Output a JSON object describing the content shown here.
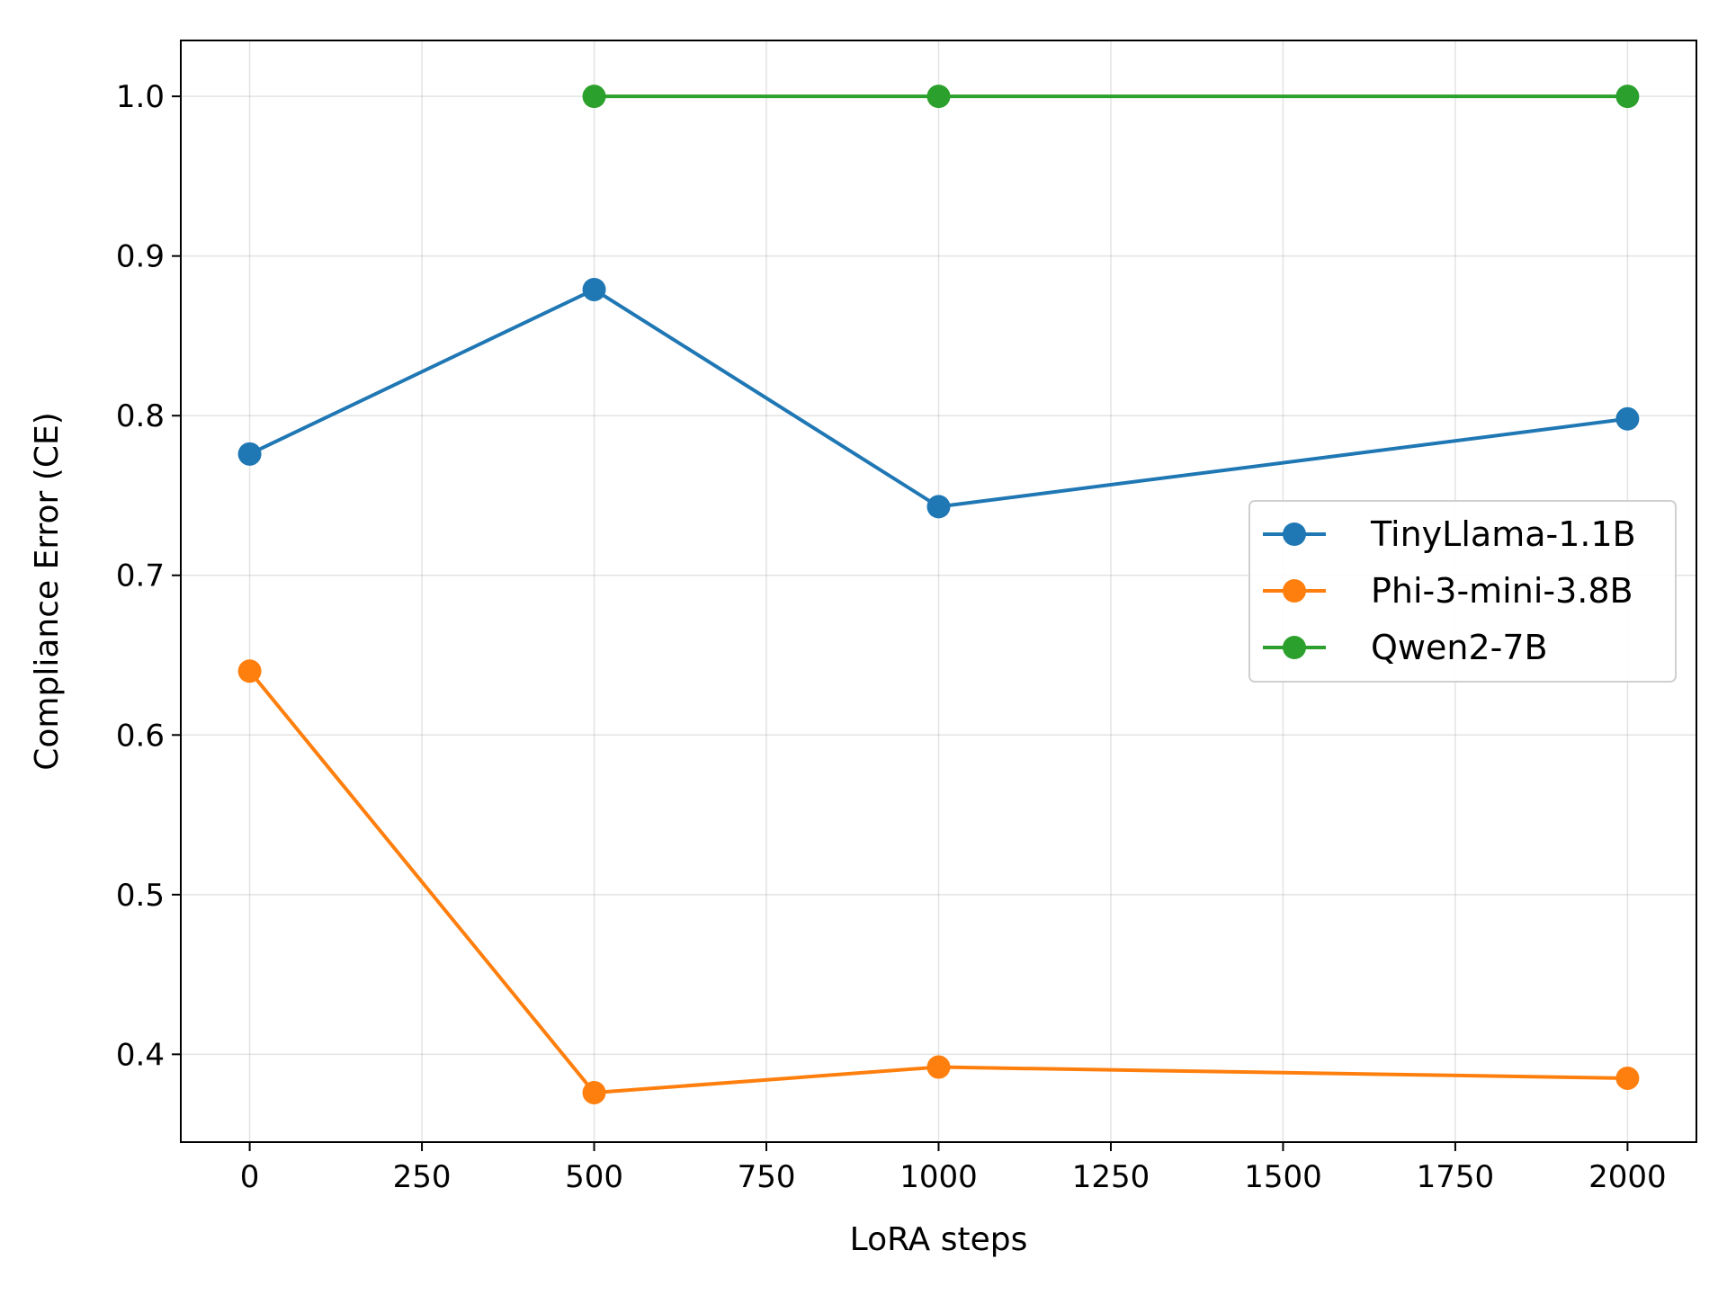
{
  "chart_data": {
    "type": "line",
    "xlabel": "LoRA steps",
    "ylabel": "Compliance Error (CE)",
    "xlim": [
      -100,
      2100
    ],
    "ylim": [
      0.345,
      1.035
    ],
    "xticks": [
      0,
      250,
      500,
      750,
      1000,
      1250,
      1500,
      1750,
      2000
    ],
    "yticks": [
      0.4,
      0.5,
      0.6,
      0.7,
      0.8,
      0.9,
      1.0
    ],
    "xtick_labels": [
      "0",
      "250",
      "500",
      "750",
      "1000",
      "1250",
      "1500",
      "1750",
      "2000"
    ],
    "ytick_labels": [
      "0.4",
      "0.5",
      "0.6",
      "0.7",
      "0.8",
      "0.9",
      "1.0"
    ],
    "grid": true,
    "legend_position": "center-right",
    "series": [
      {
        "name": "TinyLlama-1.1B",
        "color": "#1f77b4",
        "x": [
          0,
          500,
          1000,
          2000
        ],
        "y": [
          0.776,
          0.879,
          0.743,
          0.798
        ]
      },
      {
        "name": "Phi-3-mini-3.8B",
        "color": "#ff7f0e",
        "x": [
          0,
          500,
          1000,
          2000
        ],
        "y": [
          0.64,
          0.376,
          0.392,
          0.385
        ]
      },
      {
        "name": "Qwen2-7B",
        "color": "#2ca02c",
        "x": [
          500,
          1000,
          2000
        ],
        "y": [
          1.0,
          1.0,
          1.0
        ]
      }
    ]
  }
}
